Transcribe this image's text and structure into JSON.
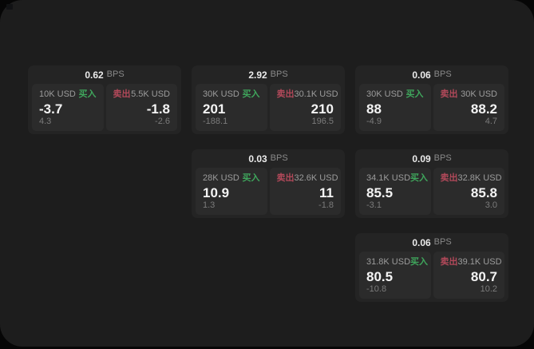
{
  "labels": {
    "bps_unit": "BPS",
    "buy": "买入",
    "sell": "卖出"
  },
  "colors": {
    "buy": "#3fa65c",
    "sell": "#b2495a",
    "panel": "#1d1d1d",
    "card": "#242424",
    "tile": "#2b2b2b"
  },
  "cards": [
    {
      "bps": "0.62",
      "row": 1,
      "col": 1,
      "buy": {
        "amount": "10K USD",
        "price": "-3.7",
        "change": "4.3"
      },
      "sell": {
        "amount": "5.5K USD",
        "price": "-1.8",
        "change": "-2.6"
      }
    },
    {
      "bps": "2.92",
      "row": 1,
      "col": 2,
      "buy": {
        "amount": "30K USD",
        "price": "201",
        "change": "-188.1"
      },
      "sell": {
        "amount": "30.1K USD",
        "price": "210",
        "change": "196.5"
      }
    },
    {
      "bps": "0.06",
      "row": 1,
      "col": 3,
      "buy": {
        "amount": "30K USD",
        "price": "88",
        "change": "-4.9"
      },
      "sell": {
        "amount": "30K USD",
        "price": "88.2",
        "change": "4.7"
      }
    },
    {
      "bps": "0.03",
      "row": 2,
      "col": 2,
      "buy": {
        "amount": "28K USD",
        "price": "10.9",
        "change": "1.3"
      },
      "sell": {
        "amount": "32.6K USD",
        "price": "11",
        "change": "-1.8"
      }
    },
    {
      "bps": "0.09",
      "row": 2,
      "col": 3,
      "buy": {
        "amount": "34.1K USD",
        "price": "85.5",
        "change": "-3.1"
      },
      "sell": {
        "amount": "32.8K USD",
        "price": "85.8",
        "change": "3.0"
      }
    },
    {
      "bps": "0.06",
      "row": 3,
      "col": 3,
      "buy": {
        "amount": "31.8K USD",
        "price": "80.5",
        "change": "-10.8"
      },
      "sell": {
        "amount": "39.1K USD",
        "price": "80.7",
        "change": "10.2"
      }
    }
  ]
}
